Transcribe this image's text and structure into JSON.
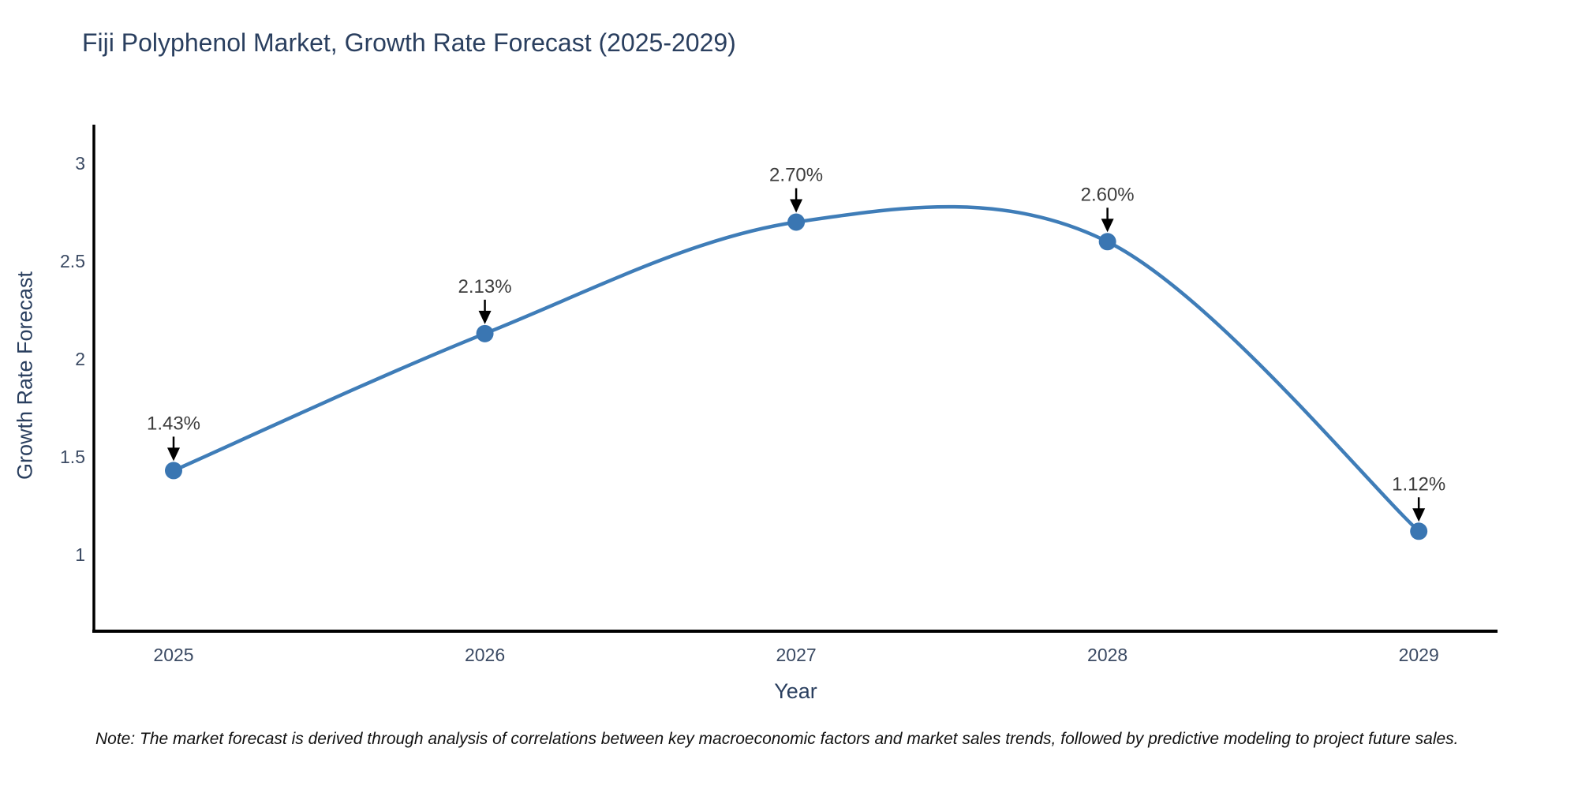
{
  "page": {
    "note": "Note: The market forecast is derived through analysis of correlations between key macroeconomic factors and market sales trends, followed by predictive modeling to project future sales."
  },
  "chart_data": {
    "type": "line",
    "line_shape": "spline",
    "title": "Fiji Polyphenol Market, Growth Rate Forecast (2025-2029)",
    "xlabel": "Year",
    "ylabel": "Growth Rate Forecast",
    "x": [
      2025,
      2026,
      2027,
      2028,
      2029
    ],
    "y": [
      1.43,
      2.13,
      2.7,
      2.6,
      1.12
    ],
    "series": [
      {
        "name": "Growth Rate Forecast",
        "x": [
          2025,
          2026,
          2027,
          2028,
          2029
        ],
        "values": [
          1.43,
          2.13,
          2.7,
          2.6,
          1.12
        ],
        "point_labels": [
          "1.43%",
          "2.13%",
          "2.70%",
          "2.60%",
          "1.12%"
        ]
      }
    ],
    "xticks": {
      "values": [
        2025,
        2026,
        2027,
        2028,
        2029
      ],
      "labels": [
        "2025",
        "2026",
        "2027",
        "2028",
        "2029"
      ]
    },
    "yticks": {
      "values": [
        1,
        1.5,
        2,
        2.5,
        3
      ],
      "labels": [
        "1",
        "1.5",
        "2",
        "2.5",
        "3"
      ]
    },
    "xlim": [
      2024.744,
      2029.253
    ],
    "ylim": [
      0.609,
      3.198
    ],
    "grid": false,
    "legend_position": "none",
    "colors": {
      "line": "#3f7db8",
      "marker": "#3a76b2",
      "axis_line": "#000000",
      "title": "#2a3f5f",
      "tick_label": "#3b4a63",
      "axis_title": "#2a3f5f",
      "annotation_text": "#3d3d3d",
      "annotation_arrow": "#000000",
      "background": "#ffffff"
    }
  }
}
